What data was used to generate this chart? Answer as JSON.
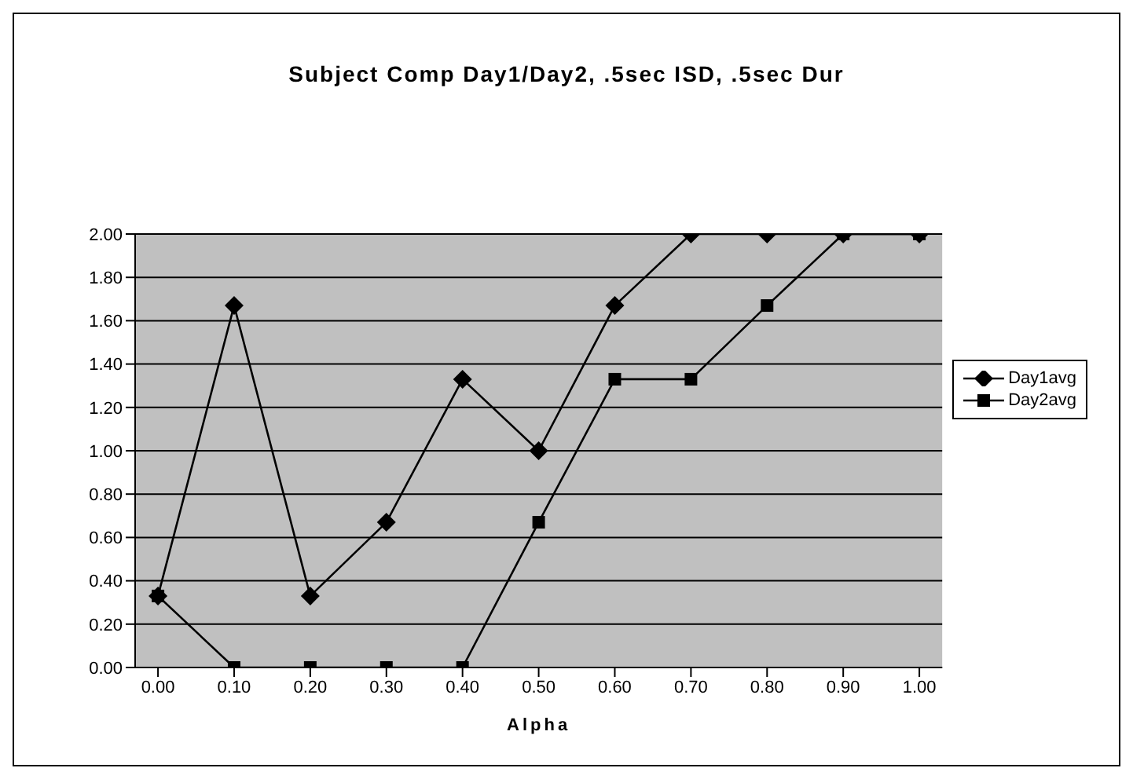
{
  "chart_data": {
    "type": "line",
    "title": "Subject Comp Day1/Day2, .5sec ISD, .5sec Dur",
    "xlabel": "Alpha",
    "x": [
      0,
      0.1,
      0.2,
      0.3,
      0.4,
      0.5,
      0.6,
      0.7,
      0.8,
      0.9,
      1.0
    ],
    "series": [
      {
        "name": "Day1avg",
        "color": "#000000",
        "marker": "diamond",
        "values": [
          0.33,
          1.67,
          0.33,
          0.67,
          1.33,
          1.0,
          1.67,
          2.0,
          2.0,
          2.0,
          2.0
        ]
      },
      {
        "name": "Day2avg",
        "color": "#000000",
        "marker": "square",
        "values": [
          0.33,
          0,
          0,
          0,
          0,
          0.67,
          1.33,
          1.33,
          1.67,
          2.0,
          2.0
        ]
      }
    ],
    "xlim": [
      -0.03,
      1.03
    ],
    "xticks": [
      {
        "value": 0,
        "label": "0.00"
      },
      {
        "value": 0.1,
        "label": "0.10"
      },
      {
        "value": 0.2,
        "label": "0.20"
      },
      {
        "value": 0.3,
        "label": "0.30"
      },
      {
        "value": 0.4,
        "label": "0.40"
      },
      {
        "value": 0.5,
        "label": "0.50"
      },
      {
        "value": 0.6,
        "label": "0.60"
      },
      {
        "value": 0.7,
        "label": "0.70"
      },
      {
        "value": 0.8,
        "label": "0.80"
      },
      {
        "value": 0.9,
        "label": "0.90"
      },
      {
        "value": 1.0,
        "label": "1.00"
      }
    ],
    "ylim": [
      0,
      2
    ],
    "yticks": [
      {
        "value": 0,
        "label": "0.00"
      },
      {
        "value": 0.2,
        "label": "0.20"
      },
      {
        "value": 0.4,
        "label": "0.40"
      },
      {
        "value": 0.6,
        "label": "0.60"
      },
      {
        "value": 0.8,
        "label": "0.80"
      },
      {
        "value": 1.0,
        "label": "1.00"
      },
      {
        "value": 1.2,
        "label": "1.20"
      },
      {
        "value": 1.4,
        "label": "1.40"
      },
      {
        "value": 1.6,
        "label": "1.60"
      },
      {
        "value": 1.8,
        "label": "1.80"
      },
      {
        "value": 2.0,
        "label": "2.00"
      }
    ],
    "grid": "y",
    "legend": "right",
    "line_style": "solid"
  }
}
